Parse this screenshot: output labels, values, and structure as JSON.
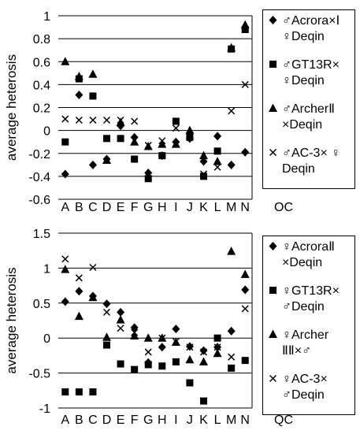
{
  "chart_data": [
    {
      "type": "scatter",
      "panel_label": "OC",
      "ylabel": "average heterosis",
      "categories": [
        "A",
        "B",
        "C",
        "D",
        "E",
        "F",
        "G",
        "H",
        "I",
        "J",
        "K",
        "L",
        "M",
        "N"
      ],
      "ylim": [
        -0.6,
        1
      ],
      "yticks": [
        1,
        0.8,
        0.6,
        0.4,
        0.2,
        0,
        -0.2,
        -0.4,
        -0.6
      ],
      "ytick_labels": [
        "1",
        "0.8",
        "0.6",
        "0.4",
        "0.2",
        "0",
        "-0.2",
        "-0.4",
        "-0.6"
      ],
      "grid": "horizontal",
      "legend_position": "right",
      "series": [
        {
          "name": "♂Acrora×Ⅰ ♀Deqin",
          "marker": "diamond",
          "values": [
            -0.38,
            0.31,
            -0.3,
            -0.25,
            0.04,
            -0.06,
            -0.37,
            -0.22,
            -0.1,
            -0.07,
            -0.27,
            -0.05,
            -0.3,
            -0.19
          ]
        },
        {
          "name": "♂GT13R× ♀Deqin",
          "marker": "square",
          "values": [
            -0.1,
            0.45,
            0.3,
            -0.07,
            -0.07,
            -0.25,
            -0.42,
            -0.22,
            0.08,
            -0.06,
            -0.4,
            -0.18,
            0.71,
            0.88
          ]
        },
        {
          "name": "♂ArcherⅡ ×Deqin",
          "marker": "triangle",
          "values": [
            0.6,
            0.47,
            0.49,
            -0.26,
            0.07,
            -0.1,
            -0.14,
            -0.12,
            -0.12,
            0.0,
            -0.22,
            -0.27,
            0.72,
            0.92
          ]
        },
        {
          "name": "♂AC-3× ♀ Deqin",
          "marker": "x",
          "values": [
            0.1,
            0.09,
            0.09,
            0.09,
            0.09,
            0.08,
            -0.13,
            -0.09,
            0.02,
            -0.04,
            -0.38,
            -0.32,
            0.17,
            0.4
          ]
        }
      ]
    },
    {
      "type": "scatter",
      "panel_label": "QC",
      "ylabel": "average heterosis",
      "categories": [
        "A",
        "B",
        "C",
        "D",
        "E",
        "F",
        "G",
        "H",
        "I",
        "J",
        "K",
        "L",
        "M",
        "N"
      ],
      "ylim": [
        -1,
        1.5
      ],
      "yticks": [
        1.5,
        1,
        0.5,
        0,
        -0.5,
        -1
      ],
      "ytick_labels": [
        "1.5",
        "1",
        "0.5",
        "0",
        "-0.5",
        "-1"
      ],
      "grid": "horizontal",
      "legend_position": "right",
      "series": [
        {
          "name": "♀AcroraⅡ ×Deqin",
          "marker": "diamond",
          "values": [
            0.52,
            0.67,
            0.6,
            0.49,
            0.37,
            0.15,
            -0.35,
            -0.13,
            0.13,
            -0.12,
            -0.18,
            -0.13,
            0.1,
            0.69
          ]
        },
        {
          "name": "♀GT13R× ♂Deqin",
          "marker": "square",
          "values": [
            -0.77,
            -0.77,
            -0.77,
            -0.1,
            -0.37,
            -0.45,
            -0.38,
            -0.4,
            -0.34,
            -0.64,
            -0.9,
            0.0,
            -0.43,
            -0.32
          ]
        },
        {
          "name": "♀Archer ⅡⅡ×♂",
          "marker": "triangle",
          "values": [
            0.98,
            0.31,
            0.58,
            0.01,
            0.26,
            0.03,
            0.0,
            0.0,
            -0.06,
            -0.31,
            -0.34,
            -0.22,
            1.24,
            0.91
          ]
        },
        {
          "name": "♀AC-3× ♂Deqin",
          "marker": "x",
          "values": [
            1.13,
            0.86,
            1.01,
            0.37,
            0.14,
            0.08,
            -0.2,
            0.0,
            -0.05,
            -0.13,
            -0.2,
            -0.13,
            -0.27,
            0.42
          ]
        }
      ]
    }
  ]
}
